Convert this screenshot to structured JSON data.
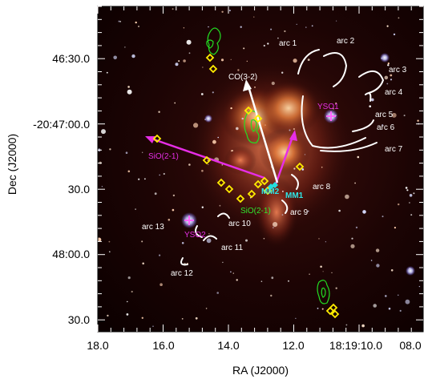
{
  "axes": {
    "xlabel": "RA (J2000)",
    "ylabel": "Dec (J2000)",
    "x_ticks": [
      "18.0",
      "16.0",
      "14.0",
      "12.0",
      "18:19:10.0",
      "08.0"
    ],
    "y_ticks": [
      "46:30.0",
      "-20:47:00.0",
      "30.0",
      "48:00.0",
      "30.0"
    ]
  },
  "labels": {
    "arcs": [
      "arc 1",
      "arc 2",
      "arc 3",
      "arc 4",
      "arc 5",
      "arc 6",
      "arc 7",
      "arc 8",
      "arc 9",
      "arc 10",
      "arc 11",
      "arc 12",
      "arc 13"
    ],
    "co": "CO(3-2)",
    "sio_left": "SiO(2-1)",
    "sio_green": "SiO(2-1)",
    "yso1": "YSO1",
    "yso2": "YSO2",
    "mm1": "MM1",
    "mm2": "MM2"
  },
  "colors": {
    "frame": "#000000",
    "arc": "#ffffff",
    "outflow_sio": "#e62ee6",
    "outflow_co": "#ffffff",
    "maser_markers": "#ffee00",
    "sio_contours": "#22dd22",
    "yso_marker": "#ff66ff",
    "mm_marker": "#22dddd"
  }
}
